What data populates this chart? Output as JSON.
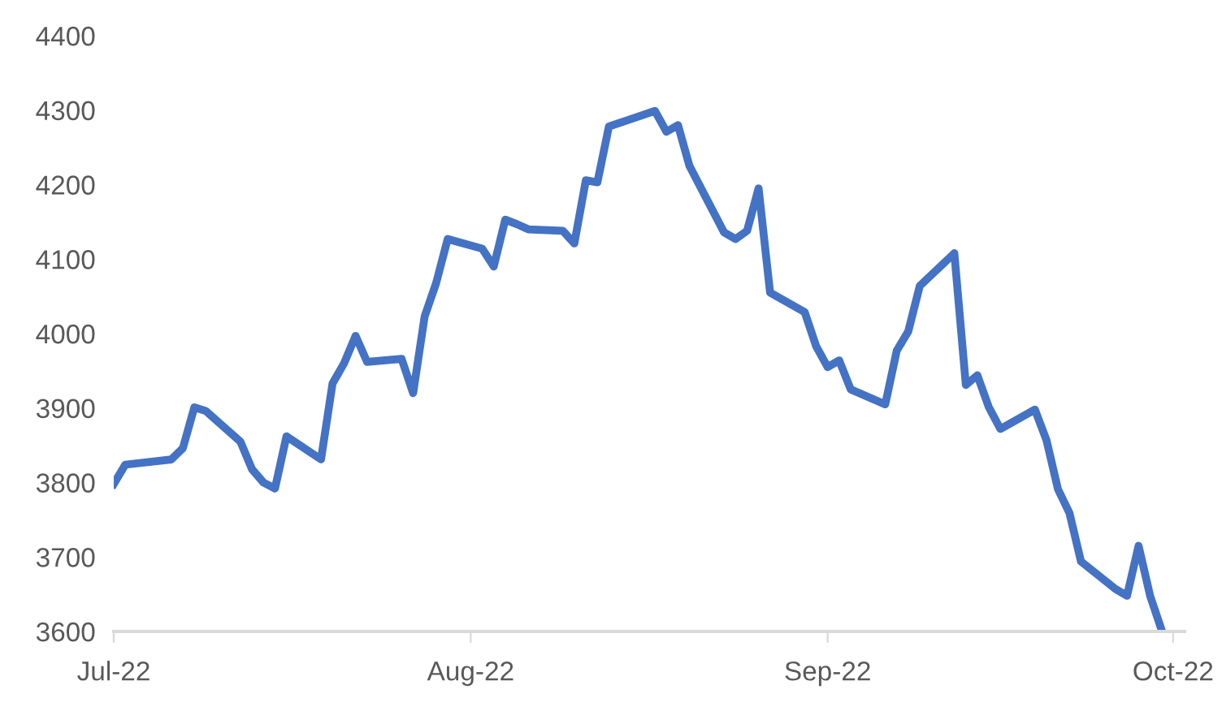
{
  "chart_data": {
    "type": "line",
    "color": "#4472c4",
    "x": [
      "2022-07-01",
      "2022-07-02",
      "2022-07-06",
      "2022-07-07",
      "2022-07-08",
      "2022-07-09",
      "2022-07-12",
      "2022-07-13",
      "2022-07-14",
      "2022-07-15",
      "2022-07-16",
      "2022-07-19",
      "2022-07-20",
      "2022-07-21",
      "2022-07-22",
      "2022-07-23",
      "2022-07-26",
      "2022-07-27",
      "2022-07-28",
      "2022-07-29",
      "2022-07-30",
      "2022-08-02",
      "2022-08-03",
      "2022-08-04",
      "2022-08-05",
      "2022-08-06",
      "2022-08-09",
      "2022-08-10",
      "2022-08-11",
      "2022-08-12",
      "2022-08-13",
      "2022-08-17",
      "2022-08-18",
      "2022-08-19",
      "2022-08-20",
      "2022-08-23",
      "2022-08-24",
      "2022-08-25",
      "2022-08-26",
      "2022-08-27",
      "2022-08-30",
      "2022-08-31",
      "2022-09-01",
      "2022-09-02",
      "2022-09-03",
      "2022-09-06",
      "2022-09-07",
      "2022-09-08",
      "2022-09-09",
      "2022-09-12",
      "2022-09-13",
      "2022-09-14",
      "2022-09-15",
      "2022-09-16",
      "2022-09-19",
      "2022-09-20",
      "2022-09-21",
      "2022-09-22",
      "2022-09-23",
      "2022-09-26",
      "2022-09-27",
      "2022-09-28",
      "2022-09-29",
      "2022-09-30"
    ],
    "values": [
      3798,
      3824,
      3831,
      3846,
      3901,
      3896,
      3855,
      3818,
      3800,
      3792,
      3862,
      3831,
      3933,
      3960,
      3997,
      3962,
      3966,
      3920,
      4023,
      4068,
      4127,
      4114,
      4090,
      4153,
      4147,
      4140,
      4138,
      4121,
      4206,
      4203,
      4278,
      4299,
      4271,
      4280,
      4225,
      4136,
      4127,
      4138,
      4195,
      4055,
      4029,
      3983,
      3955,
      3964,
      3925,
      3905,
      3977,
      4003,
      4064,
      4108,
      3931,
      3944,
      3901,
      3872,
      3898,
      3857,
      3791,
      3759,
      3694,
      3657,
      3648,
      3715,
      3648,
      3602
    ],
    "xlim": [
      "2022-07-01",
      "2022-10-02"
    ],
    "xticks": [
      {
        "value": "2022-07-01",
        "label": "Jul-22"
      },
      {
        "value": "2022-08-01",
        "label": "Aug-22"
      },
      {
        "value": "2022-09-01",
        "label": "Sep-22"
      },
      {
        "value": "2022-10-01",
        "label": "Oct-22"
      }
    ],
    "ylim": [
      3600,
      4400
    ],
    "yticks": [
      3600,
      3700,
      3800,
      3900,
      4000,
      4100,
      4200,
      4300,
      4400
    ],
    "line_style": "solid",
    "marker": "none",
    "grid": false,
    "legend": false
  }
}
